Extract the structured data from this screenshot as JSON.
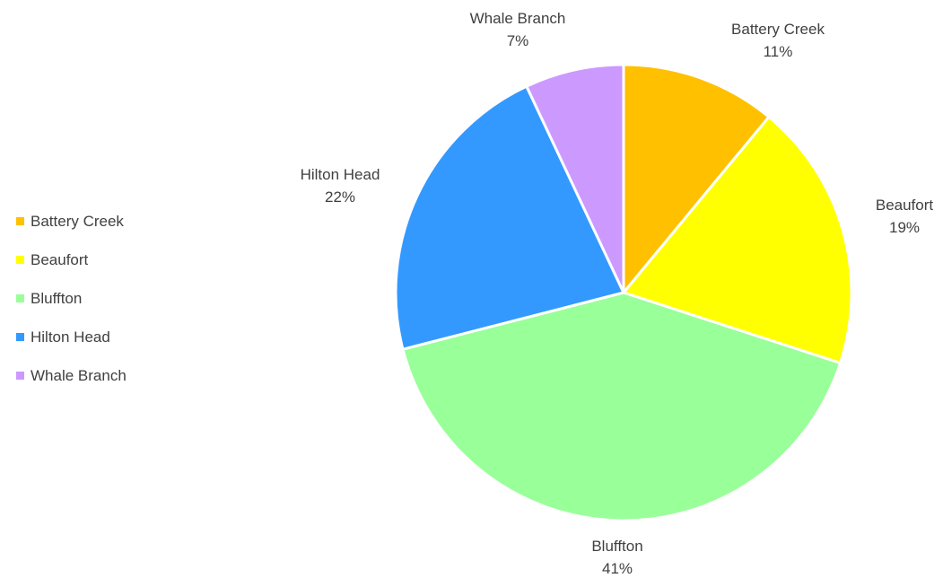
{
  "chart_data": {
    "type": "pie",
    "title": "",
    "slices": [
      {
        "label": "Battery Creek",
        "percent_label": "11%",
        "value": 11,
        "color": "#FFC000"
      },
      {
        "label": "Beaufort",
        "percent_label": "19%",
        "value": 19,
        "color": "#FFFF00"
      },
      {
        "label": "Bluffton",
        "percent_label": "41%",
        "value": 41,
        "color": "#99FF99"
      },
      {
        "label": "Hilton Head",
        "percent_label": "22%",
        "value": 22,
        "color": "#3399FF"
      },
      {
        "label": "Whale Branch",
        "percent_label": "7%",
        "value": 7,
        "color": "#CC99FF"
      }
    ],
    "legend_position": "left",
    "start_angle": "12 o'clock",
    "direction": "clockwise",
    "slice_border_color": "#FFFFFF"
  },
  "legend": {
    "items": [
      {
        "label": "Battery Creek",
        "color": "#FFC000"
      },
      {
        "label": "Beaufort",
        "color": "#FFFF00"
      },
      {
        "label": "Bluffton",
        "color": "#99FF99"
      },
      {
        "label": "Hilton Head",
        "color": "#3399FF"
      },
      {
        "label": "Whale Branch",
        "color": "#CC99FF"
      }
    ]
  }
}
